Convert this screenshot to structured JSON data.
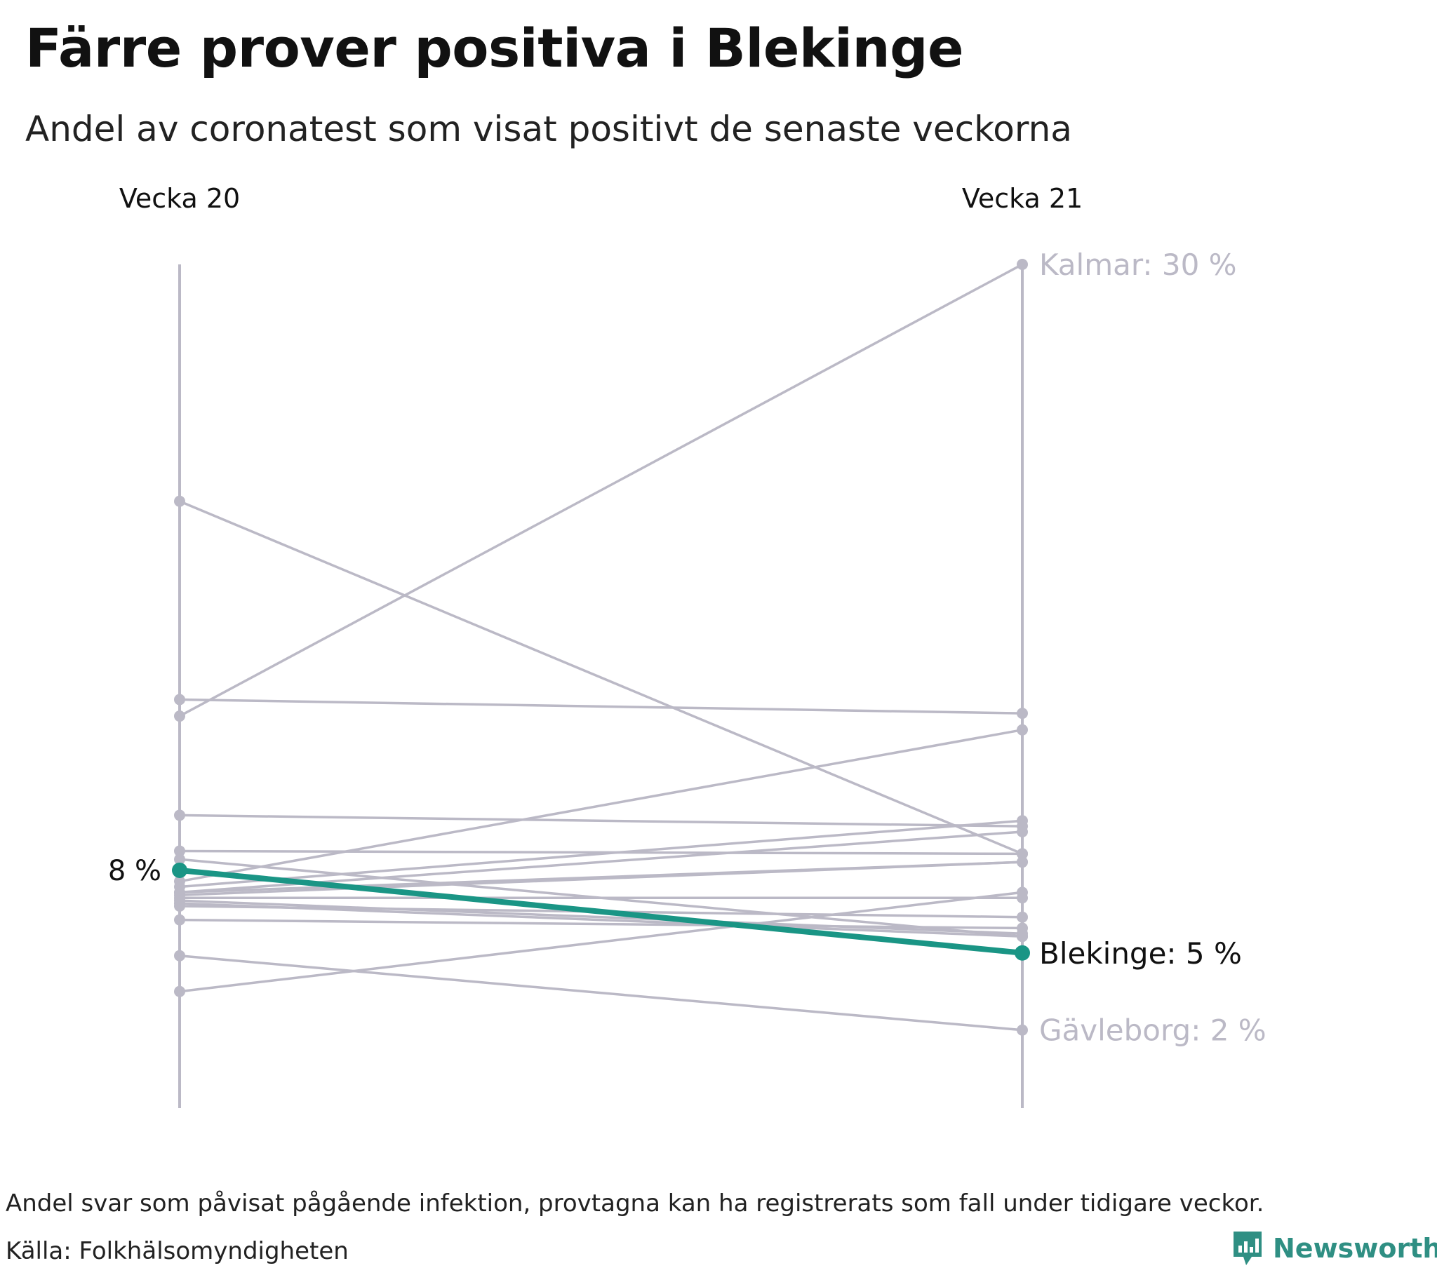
{
  "title": "Färre prover positiva i Blekinge",
  "subtitle": "Andel av coronatest som visat positivt de senaste veckorna",
  "footer": {
    "note": "Andel svar som påvisat pågående infektion, provtagna kan ha registrerats som fall under tidigare veckor.",
    "source": "Källa: Folkhälsomyndigheten",
    "brand": "Newsworthy",
    "brand_icon": "bar-chart-speech-bubble-icon"
  },
  "colors": {
    "highlight": "#1a9585",
    "muted": "#bbb9c6",
    "text": "#111111"
  },
  "chart_data": {
    "type": "line",
    "categories": [
      "Vecka 20",
      "Vecka 21"
    ],
    "ylim": [
      1.2,
      30
    ],
    "grid": false,
    "highlight": {
      "name": "Blekinge",
      "values": [
        8.0,
        5.0
      ],
      "start_label": "8 %",
      "end_label": "Blekinge: 5 %"
    },
    "series": [
      {
        "name": "Kalmar",
        "values": [
          13.6,
          30.0
        ],
        "end_label": "Kalmar: 30 %"
      },
      {
        "name": "Gävleborg",
        "values": [
          4.9,
          2.2
        ],
        "end_label": "Gävleborg: 2 %"
      },
      {
        "values": [
          21.4,
          8.6
        ]
      },
      {
        "values": [
          14.2,
          13.7
        ]
      },
      {
        "values": [
          10.0,
          9.6
        ]
      },
      {
        "values": [
          8.7,
          8.6
        ]
      },
      {
        "values": [
          8.4,
          5.6
        ]
      },
      {
        "values": [
          7.6,
          13.1
        ]
      },
      {
        "values": [
          7.4,
          9.8
        ]
      },
      {
        "values": [
          7.2,
          9.4
        ]
      },
      {
        "values": [
          7.2,
          8.3
        ]
      },
      {
        "values": [
          7.1,
          8.3
        ]
      },
      {
        "values": [
          7.0,
          7.0
        ]
      },
      {
        "values": [
          6.9,
          5.7
        ]
      },
      {
        "values": [
          6.8,
          5.6
        ]
      },
      {
        "values": [
          6.7,
          6.3
        ]
      },
      {
        "values": [
          6.2,
          5.9
        ]
      },
      {
        "values": [
          3.6,
          7.2
        ]
      }
    ]
  }
}
